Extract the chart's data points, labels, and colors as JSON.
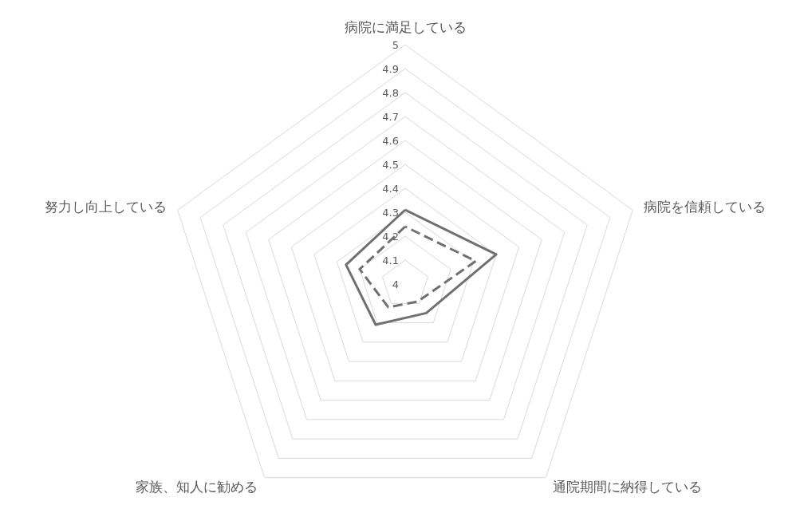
{
  "chart_data": {
    "type": "radar",
    "categories": [
      "病院に満足している",
      "病院を信頼している",
      "通院期間に納得している",
      "家族、知人に勧める",
      "努力し向上している"
    ],
    "ylim": [
      4,
      5
    ],
    "yticks": [
      4,
      4.1,
      4.2,
      4.3,
      4.4,
      4.5,
      4.6,
      4.7,
      4.8,
      4.9,
      5
    ],
    "grid": true,
    "marker": "none",
    "series": [
      {
        "color": "#707070",
        "line_style": "solid",
        "values": [
          4.31,
          4.4,
          4.15,
          4.21,
          4.26
        ]
      },
      {
        "color": "#707070",
        "line_style": "dashed",
        "values": [
          4.24,
          4.31,
          4.09,
          4.12,
          4.2
        ]
      }
    ]
  }
}
